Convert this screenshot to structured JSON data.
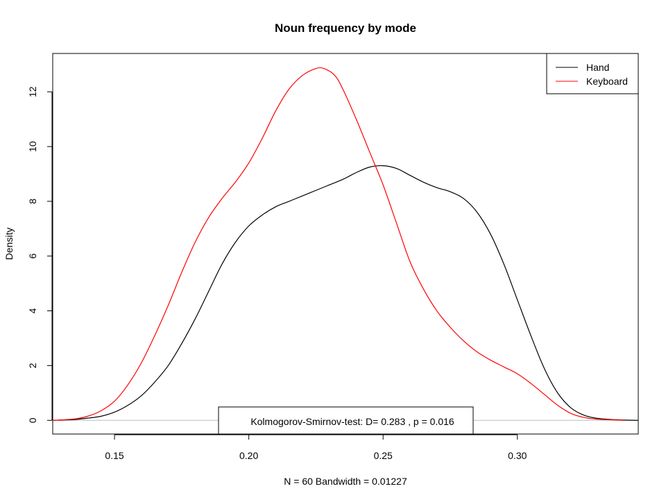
{
  "chart_data": {
    "type": "line",
    "title": "Noun frequency by mode",
    "xlabel": "N = 60   Bandwidth = 0.01227",
    "ylabel": "Density",
    "xlim": [
      0.127,
      0.345
    ],
    "ylim": [
      -0.5,
      13.4
    ],
    "x_ticks": [
      "0.15",
      "0.20",
      "0.25",
      "0.30"
    ],
    "x_tick_values": [
      0.15,
      0.2,
      0.25,
      0.3
    ],
    "y_ticks": [
      "0",
      "2",
      "4",
      "6",
      "8",
      "10",
      "12"
    ],
    "y_tick_values": [
      0,
      2,
      4,
      6,
      8,
      10,
      12
    ],
    "grid": false,
    "legend_position": "top-right",
    "zero_line": true,
    "annotation": "Kolmogorov-Smirnov-test: D= 0.283 , p =  0.016",
    "series": [
      {
        "name": "Hand",
        "color": "#000000",
        "x": [
          0.127,
          0.135,
          0.14,
          0.145,
          0.15,
          0.155,
          0.16,
          0.165,
          0.17,
          0.175,
          0.18,
          0.185,
          0.19,
          0.195,
          0.2,
          0.205,
          0.21,
          0.215,
          0.22,
          0.225,
          0.23,
          0.235,
          0.24,
          0.245,
          0.25,
          0.255,
          0.26,
          0.265,
          0.27,
          0.275,
          0.28,
          0.285,
          0.29,
          0.295,
          0.3,
          0.305,
          0.31,
          0.315,
          0.32,
          0.325,
          0.33,
          0.335,
          0.34,
          0.345
        ],
        "y": [
          0.0,
          0.03,
          0.08,
          0.15,
          0.3,
          0.55,
          0.9,
          1.4,
          2.0,
          2.8,
          3.7,
          4.7,
          5.7,
          6.5,
          7.1,
          7.5,
          7.8,
          8.0,
          8.2,
          8.4,
          8.6,
          8.8,
          9.05,
          9.25,
          9.3,
          9.2,
          8.95,
          8.7,
          8.5,
          8.35,
          8.1,
          7.6,
          6.8,
          5.7,
          4.4,
          3.1,
          1.9,
          1.0,
          0.45,
          0.18,
          0.07,
          0.03,
          0.01,
          0.0
        ]
      },
      {
        "name": "Keyboard",
        "color": "#ff0000",
        "x": [
          0.127,
          0.135,
          0.14,
          0.145,
          0.15,
          0.155,
          0.16,
          0.165,
          0.17,
          0.175,
          0.18,
          0.185,
          0.19,
          0.195,
          0.2,
          0.205,
          0.21,
          0.215,
          0.22,
          0.225,
          0.228,
          0.232,
          0.235,
          0.24,
          0.245,
          0.25,
          0.255,
          0.26,
          0.265,
          0.27,
          0.275,
          0.28,
          0.285,
          0.29,
          0.295,
          0.3,
          0.305,
          0.31,
          0.315,
          0.32,
          0.325,
          0.33,
          0.335,
          0.34
        ],
        "y": [
          0.0,
          0.05,
          0.15,
          0.35,
          0.7,
          1.3,
          2.1,
          3.1,
          4.2,
          5.4,
          6.5,
          7.4,
          8.1,
          8.7,
          9.4,
          10.3,
          11.3,
          12.1,
          12.6,
          12.85,
          12.85,
          12.6,
          12.1,
          11.0,
          9.8,
          8.6,
          7.2,
          5.8,
          4.8,
          4.0,
          3.4,
          2.9,
          2.5,
          2.2,
          1.95,
          1.7,
          1.35,
          0.95,
          0.55,
          0.25,
          0.1,
          0.04,
          0.02,
          0.0
        ]
      }
    ]
  }
}
